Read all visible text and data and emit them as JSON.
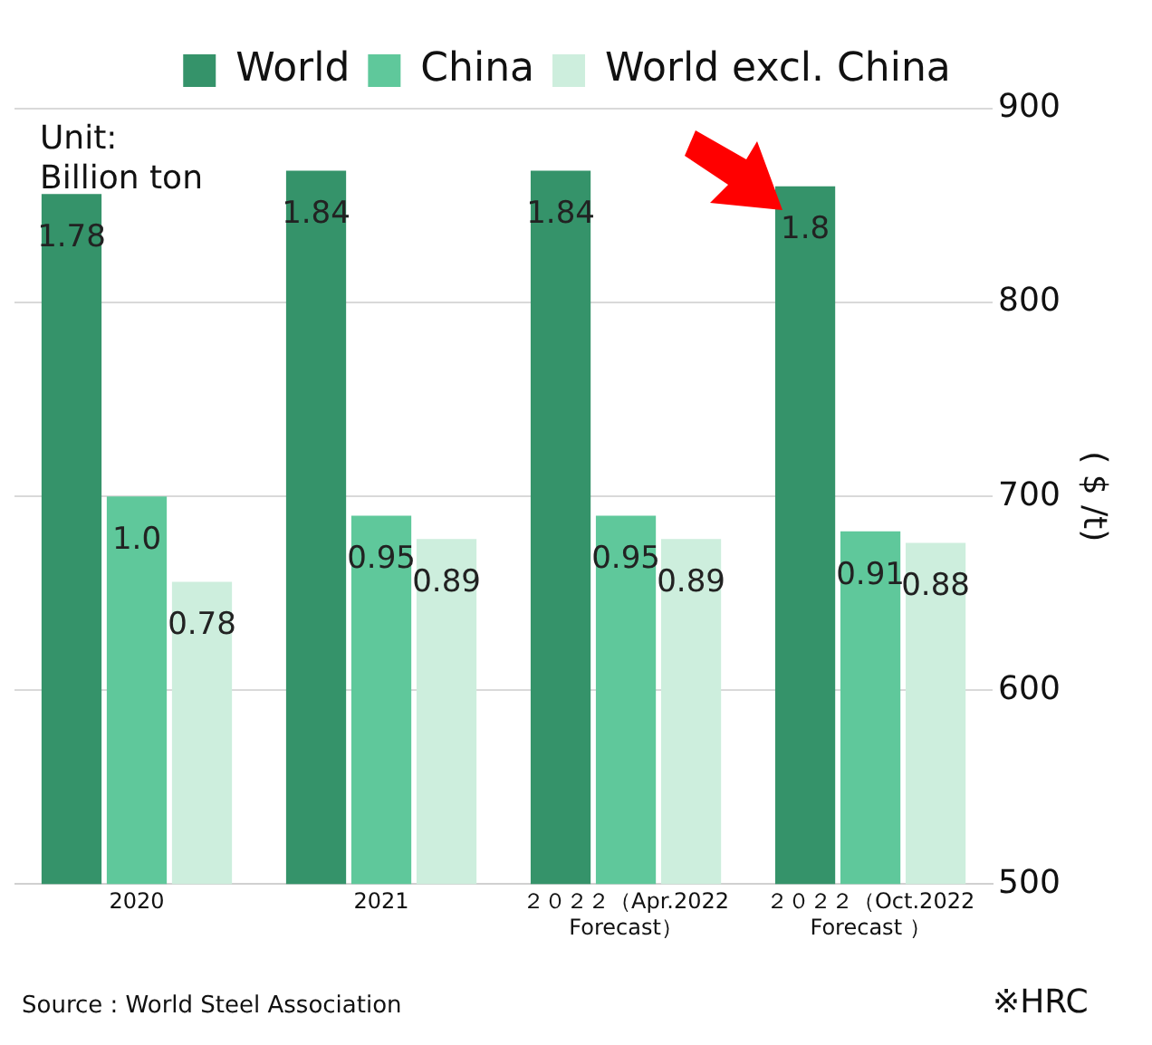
{
  "chart_data": {
    "type": "bar",
    "categories": [
      "2020",
      "2021",
      "２０２２（Apr.2022\nForecast）",
      "２０２２（Oct.2022\nForecast ）"
    ],
    "series": [
      {
        "name": "World",
        "color": "#35936a",
        "values": [
          1.78,
          1.84,
          1.84,
          1.8
        ],
        "value_labels": [
          "1.78",
          "1.84",
          "1.84",
          "1.8"
        ]
      },
      {
        "name": "China",
        "color": "#5fc89b",
        "values": [
          1.0,
          0.95,
          0.95,
          0.91
        ],
        "value_labels": [
          "1.0",
          "0.95",
          "0.95",
          "0.91"
        ]
      },
      {
        "name": "World excl. China",
        "color": "#cdeedd",
        "values": [
          0.78,
          0.89,
          0.89,
          0.88
        ],
        "value_labels": [
          "0.78",
          "0.89",
          "0.89",
          "0.88"
        ]
      }
    ],
    "y2label": "( $ /t)",
    "y2lim": [
      500,
      900
    ],
    "y2ticks": [
      500,
      600,
      700,
      800,
      900
    ],
    "legend": "top",
    "grid": "y",
    "annotations": [
      "Unit:\nBillion ton",
      "Source : World Steel Association",
      "※HRC"
    ]
  }
}
